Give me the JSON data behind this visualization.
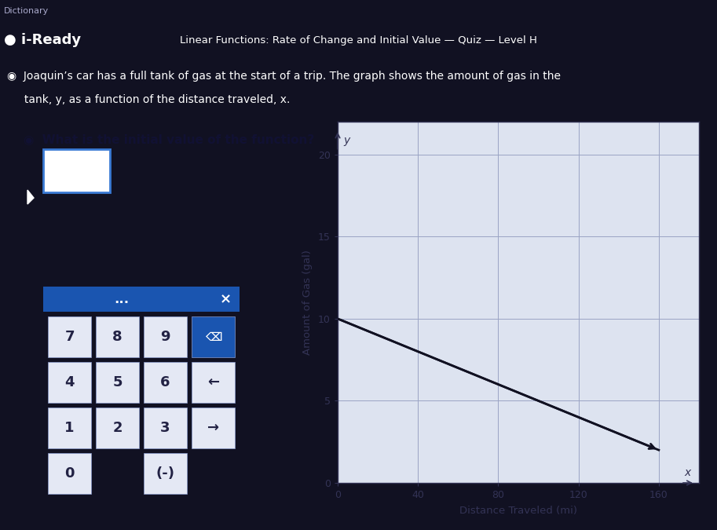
{
  "bg_outer": "#111122",
  "bg_topbar": "#1a1a30",
  "bg_content": "#b8c4dc",
  "bg_graph": "#ccd4e8",
  "bg_graph_inner": "#dde3f0",
  "top_bar_text": "Linear Functions: Rate of Change and Initial Value — Quiz — Level H",
  "iready_text": "● i-Ready",
  "dictionary_text": "Dictionary",
  "problem_text_line1": "◉  Joaquin’s car has a full tank of gas at the start of a trip. The graph shows the amount of gas in the",
  "problem_text_line2": "     tank, y, as a function of the distance traveled, x.",
  "question_text": "◉  What is the initial value of the function?",
  "graph_xlabel": "Distance Traveled (mi)",
  "graph_ylabel": "Amount of Gas (gal)",
  "graph_label_y": "y",
  "graph_label_x": "x",
  "x_ticks": [
    0,
    40,
    80,
    120,
    160
  ],
  "y_ticks": [
    0,
    5,
    10,
    15,
    20
  ],
  "xlim": [
    0,
    180
  ],
  "ylim": [
    0,
    22
  ],
  "line_x": [
    0,
    160
  ],
  "line_y": [
    10,
    2
  ],
  "line_color": "#111122",
  "grid_color": "#9aa4c4",
  "axis_label_color": "#333355",
  "tick_color": "#333355",
  "calc_bg": "#2e6ec4",
  "calc_header_bg": "#1a55b0",
  "calc_button_bg": "#e4e8f4",
  "calc_button_dark": "#1a55b0",
  "calc_button_text": "#222244",
  "calc_arrow_button_bg": "#e4e8f4",
  "figsize": [
    9.13,
    6.75
  ],
  "dpi": 100
}
